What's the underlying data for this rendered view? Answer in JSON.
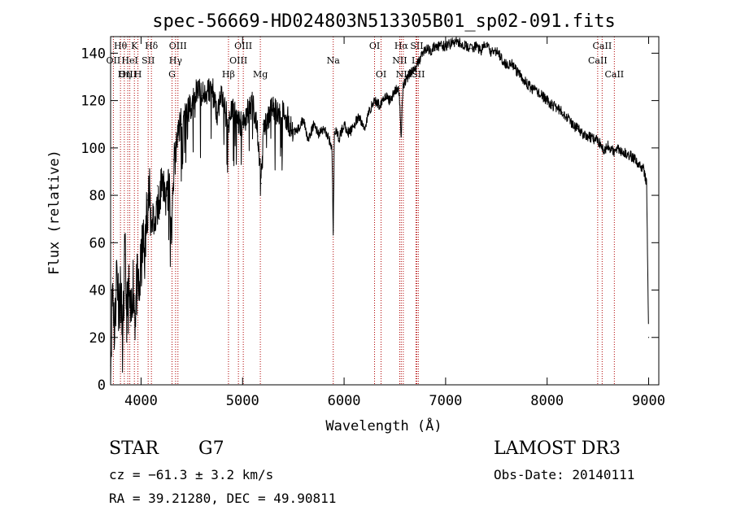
{
  "chart_data": {
    "type": "line",
    "title": "spec-56669-HD024803N513305B01_sp02-091.fits",
    "xlabel": "Wavelength (Å)",
    "ylabel": "Flux (relative)",
    "xlim": [
      3700,
      9100
    ],
    "ylim": [
      0,
      147
    ],
    "x_ticks": [
      4000,
      5000,
      6000,
      7000,
      8000,
      9000
    ],
    "y_ticks": [
      0,
      20,
      40,
      60,
      80,
      100,
      120,
      140
    ],
    "grid": false,
    "series": [
      {
        "x": [
          3700,
          3720,
          3740,
          3760,
          3780,
          3800,
          3820,
          3840,
          3860,
          3880,
          3900,
          3920,
          3940,
          3960,
          3980,
          4000,
          4020,
          4040,
          4060,
          4080,
          4100,
          4120,
          4140,
          4160,
          4180,
          4200,
          4220,
          4240,
          4260,
          4280,
          4300,
          4320,
          4340,
          4360,
          4380,
          4400,
          4450,
          4500,
          4550,
          4600,
          4650,
          4700,
          4750,
          4800,
          4850,
          4861,
          4900,
          4950,
          5000,
          5050,
          5100,
          5150,
          5183,
          5200,
          5250,
          5300,
          5350,
          5400,
          5450,
          5500,
          5550,
          5600,
          5650,
          5700,
          5750,
          5800,
          5850,
          5880,
          5893,
          5905,
          5950,
          6000,
          6050,
          6100,
          6150,
          6200,
          6250,
          6300,
          6350,
          6400,
          6450,
          6500,
          6540,
          6563,
          6580,
          6600,
          6650,
          6700,
          6750,
          6800,
          6850,
          6900,
          6950,
          7000,
          7050,
          7100,
          7150,
          7200,
          7250,
          7300,
          7350,
          7400,
          7450,
          7500,
          7550,
          7600,
          7650,
          7700,
          7750,
          7800,
          7850,
          7900,
          7950,
          8000,
          8050,
          8100,
          8150,
          8200,
          8250,
          8300,
          8350,
          8400,
          8450,
          8500,
          8542,
          8560,
          8600,
          8662,
          8700,
          8750,
          8800,
          8850,
          8900,
          8950,
          8980,
          9000
        ],
        "y": [
          8,
          45,
          20,
          50,
          35,
          40,
          15,
          55,
          30,
          38,
          25,
          45,
          30,
          42,
          38,
          50,
          60,
          55,
          78,
          80,
          68,
          72,
          65,
          84,
          70,
          88,
          85,
          78,
          80,
          88,
          60,
          95,
          95,
          105,
          110,
          110,
          115,
          118,
          125,
          122,
          124,
          125,
          115,
          122,
          112,
          110,
          118,
          112,
          110,
          115,
          118,
          105,
          85,
          110,
          112,
          118,
          114,
          115,
          112,
          106,
          108,
          112,
          103,
          110,
          106,
          108,
          104,
          100,
          65,
          108,
          104,
          110,
          106,
          110,
          113,
          108,
          116,
          120,
          118,
          122,
          120,
          124,
          125,
          105,
          127,
          128,
          132,
          133,
          138,
          142,
          141,
          143,
          143,
          143,
          144,
          145,
          144,
          143,
          142,
          143,
          141,
          144,
          140,
          141,
          138,
          135,
          136,
          132,
          130,
          127,
          125,
          124,
          122,
          120,
          118,
          117,
          115,
          113,
          110,
          108,
          106,
          105,
          104,
          103,
          101,
          99,
          101,
          98,
          100,
          98,
          97,
          96,
          93,
          91,
          85,
          20
        ]
      }
    ],
    "line_annotations": [
      {
        "label": "Hθ",
        "x": 3797,
        "row": 0
      },
      {
        "label": "OII",
        "x": 3727,
        "row": 1
      },
      {
        "label": "OIII",
        "x": 3869,
        "row": 2
      },
      {
        "label": "K",
        "x": 3934,
        "row": 0
      },
      {
        "label": "HeI",
        "x": 3889,
        "row": 1
      },
      {
        "label": "Hη",
        "x": 3835,
        "row": 2
      },
      {
        "label": "Hδ",
        "x": 4102,
        "row": 0
      },
      {
        "label": "SII",
        "x": 4070,
        "row": 1
      },
      {
        "label": "H",
        "x": 3969,
        "row": 2
      },
      {
        "label": "OIII",
        "x": 4363,
        "row": 0
      },
      {
        "label": "Hγ",
        "x": 4340,
        "row": 1
      },
      {
        "label": "G",
        "x": 4305,
        "row": 2
      },
      {
        "label": "Hβ",
        "x": 4861,
        "row": 2
      },
      {
        "label": "OIII",
        "x": 5007,
        "row": 0
      },
      {
        "label": "OIII",
        "x": 4959,
        "row": 1
      },
      {
        "label": "Mg",
        "x": 5175,
        "row": 2
      },
      {
        "label": "Na",
        "x": 5893,
        "row": 1
      },
      {
        "label": "OI",
        "x": 6300,
        "row": 0
      },
      {
        "label": "OI",
        "x": 6364,
        "row": 2
      },
      {
        "label": "Hα",
        "x": 6563,
        "row": 0
      },
      {
        "label": "NII",
        "x": 6548,
        "row": 1
      },
      {
        "label": "NII",
        "x": 6583,
        "row": 2
      },
      {
        "label": "SII",
        "x": 6716,
        "row": 0
      },
      {
        "label": "Li",
        "x": 6708,
        "row": 1
      },
      {
        "label": "SII",
        "x": 6731,
        "row": 2
      },
      {
        "label": "CaII",
        "x": 8542,
        "row": 0
      },
      {
        "label": "CaII",
        "x": 8498,
        "row": 1
      },
      {
        "label": "CaII",
        "x": 8662,
        "row": 2
      }
    ]
  },
  "info": {
    "class_label": "STAR",
    "subclass": "G7",
    "survey": "LAMOST DR3",
    "cz": "cz = −61.3 ± 3.2 km/s",
    "obs_date": "Obs-Date: 20140111",
    "coords": "RA =  39.21280, DEC =  49.90811"
  }
}
